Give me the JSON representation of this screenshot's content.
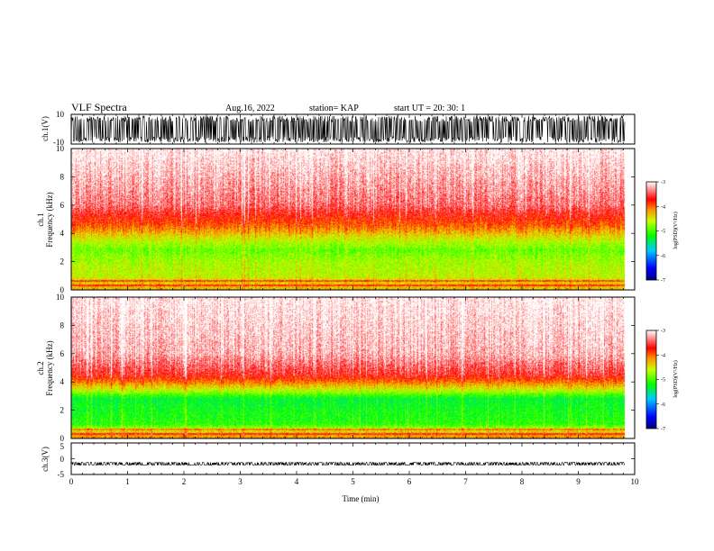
{
  "header": {
    "title": "VLF Spectra",
    "date": "Aug.16, 2022",
    "station": "station= KAP",
    "start": "start  UT  =   20: 30: 1"
  },
  "chart_data": [
    {
      "type": "line",
      "panel": "ch1-waveform",
      "ylabel": "ch.1(V)",
      "ylim": [
        -10,
        10
      ],
      "yticks": [
        "10",
        "-10"
      ],
      "x_range_min": [
        0,
        9.83
      ],
      "note_values": "dense broadband waveform filling roughly -9..+9 V",
      "y_amplitude": 9
    },
    {
      "type": "heatmap",
      "panel": "ch1-spectrogram",
      "ylabel_top": "ch.1",
      "ylabel": "Frequency (kHz)",
      "ylim": [
        0,
        10
      ],
      "yticks": [
        "0",
        "2",
        "4",
        "6",
        "8",
        "10"
      ],
      "xlim": [
        0,
        10
      ],
      "data_end_min": 9.83,
      "colorbar_label": "log(PSD)(V²/Hz)",
      "colorbar_range": [
        -7,
        -3
      ],
      "colorbar_ticks": [
        "-3",
        "-4",
        "-5",
        "-6",
        "-7"
      ],
      "band_profile": [
        {
          "f_khz": 0.3,
          "log_psd": -4.3
        },
        {
          "f_khz": 1.0,
          "log_psd": -4.6
        },
        {
          "f_khz": 2.0,
          "log_psd": -4.7
        },
        {
          "f_khz": 2.8,
          "log_psd": -4.9
        },
        {
          "f_khz": 3.5,
          "log_psd": -4.6
        },
        {
          "f_khz": 4.5,
          "log_psd": -4.0
        },
        {
          "f_khz": 6.0,
          "log_psd": -3.4
        },
        {
          "f_khz": 10.0,
          "log_psd": -3.0
        }
      ]
    },
    {
      "type": "heatmap",
      "panel": "ch2-spectrogram",
      "ylabel_top": "ch.2",
      "ylabel": "Frequency (kHz)",
      "ylim": [
        0,
        10
      ],
      "yticks": [
        "0",
        "2",
        "4",
        "6",
        "8",
        "10"
      ],
      "xlim": [
        0,
        10
      ],
      "data_end_min": 9.83,
      "colorbar_label": "log(PSD)(V²/Hz)",
      "colorbar_range": [
        -7,
        -3
      ],
      "colorbar_ticks": [
        "-3",
        "-4",
        "-5",
        "-6",
        "-7"
      ],
      "band_profile": [
        {
          "f_khz": 0.3,
          "log_psd": -4.2
        },
        {
          "f_khz": 1.0,
          "log_psd": -5.1
        },
        {
          "f_khz": 2.0,
          "log_psd": -5.2
        },
        {
          "f_khz": 2.8,
          "log_psd": -5.3
        },
        {
          "f_khz": 3.5,
          "log_psd": -4.5
        },
        {
          "f_khz": 4.5,
          "log_psd": -3.6
        },
        {
          "f_khz": 6.0,
          "log_psd": -3.2
        },
        {
          "f_khz": 10.0,
          "log_psd": -3.0
        }
      ]
    },
    {
      "type": "line",
      "panel": "ch3-waveform",
      "ylabel": "ch.3(V)",
      "ylim": [
        -5,
        5
      ],
      "yticks": [
        "5",
        "0",
        "-5"
      ],
      "x_range_min": [
        0,
        9.83
      ],
      "y_center": -1.6,
      "y_amplitude": 0.5,
      "xlabel": "Time (min)",
      "xticks": [
        "0",
        "1",
        "2",
        "3",
        "4",
        "5",
        "6",
        "7",
        "8",
        "9",
        "10"
      ]
    }
  ]
}
